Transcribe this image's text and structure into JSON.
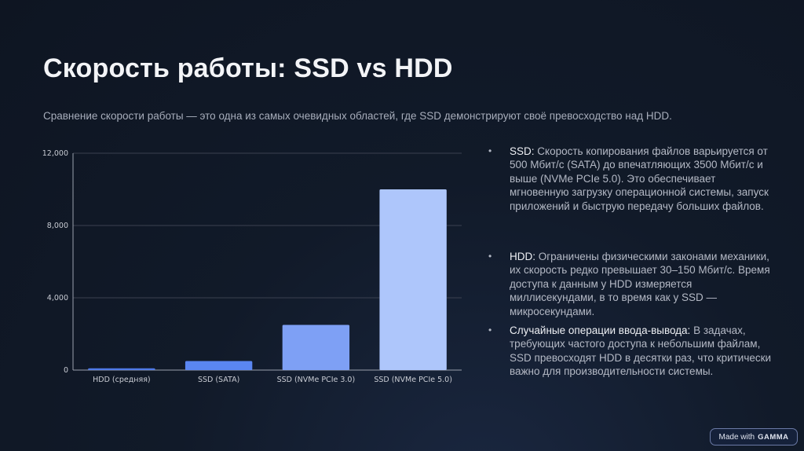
{
  "slide": {
    "title": "Скорость работы: SSD vs HDD",
    "subtitle": "Сравнение скорости работы — это одна из самых очевидных областей, где SSD демонстрируют своё превосходство над HDD."
  },
  "bullets": [
    {
      "lead": "SSD:",
      "text": " Скорость копирования файлов варьируется от 500 Мбит/с (SATA) до впечатляющих 3500 Мбит/с и выше (NVMe PCIe 5.0). Это обеспечивает мгновенную загрузку операционной системы, запуск приложений и быструю передачу больших файлов."
    },
    {
      "lead": "HDD:",
      "text": " Ограничены физическими законами механики, их скорость редко превышает 30–150 Мбит/с. Время доступа к данным у HDD измеряется миллисекундами, в то время как у SSD — микросекундами."
    },
    {
      "lead": "Случайные операции ввода-вывода:",
      "text": " В задачах, требующих частого доступа к небольшим файлам, SSD превосходят HDD в десятки раз, что критически важно для производительности системы."
    }
  ],
  "badge": {
    "prefix": "Made with",
    "brand": "GAMMA"
  },
  "colors": {
    "background": "#111a29",
    "bars": [
      "#4f7ae8",
      "#5a86f2",
      "#7ea0f5",
      "#aec6fb"
    ],
    "axis": "#9aa0ad",
    "grid": "#3b4150"
  },
  "chart_data": {
    "type": "bar",
    "categories": [
      "HDD (средняя)",
      "SSD (SATA)",
      "SSD (NVMe PCIe 3.0)",
      "SSD (NVMe PCIe 5.0)"
    ],
    "values": [
      100,
      500,
      2500,
      10000
    ],
    "ylim": [
      0,
      12000
    ],
    "yticks": [
      0,
      4000,
      8000,
      12000
    ],
    "ytick_labels": [
      "0",
      "4,000",
      "8,000",
      "12,000"
    ],
    "grid": true,
    "title": "",
    "xlabel": "",
    "ylabel": ""
  }
}
